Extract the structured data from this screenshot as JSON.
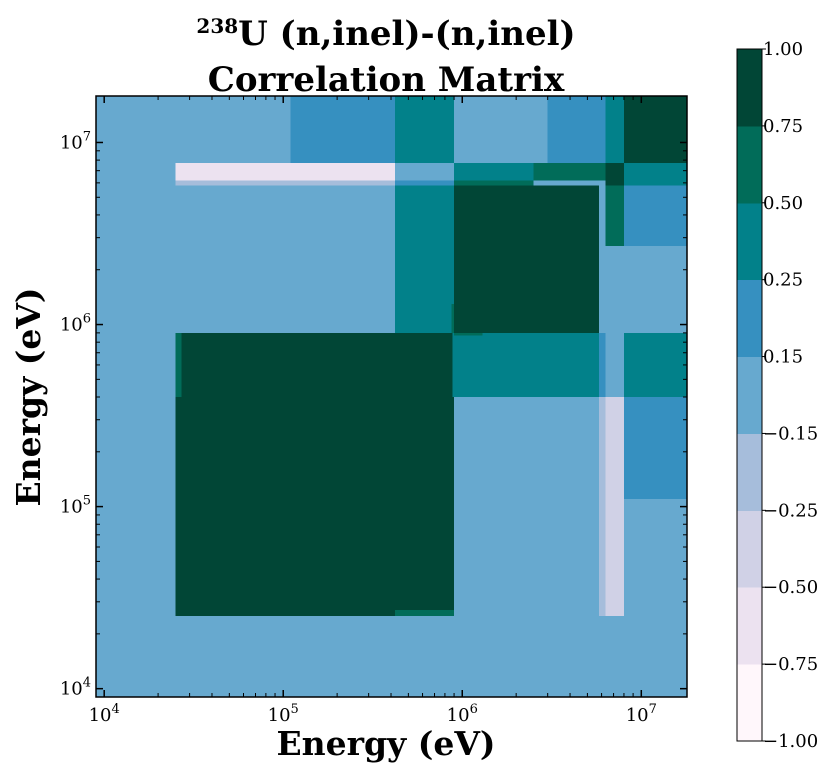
{
  "chart_data": {
    "type": "heatmap",
    "title_sup": "238",
    "title_line1": "U (n,inel)-(n,inel)",
    "title_line2": "Correlation Matrix",
    "xlabel": "Energy (eV)",
    "ylabel": "Energy (eV)",
    "xscale": "log",
    "yscale": "log",
    "xlim": [
      9000,
      18000000
    ],
    "ylim": [
      9000,
      18000000
    ],
    "x_ticks": [
      {
        "base": "10",
        "exp": "4",
        "value": 10000
      },
      {
        "base": "10",
        "exp": "5",
        "value": 100000
      },
      {
        "base": "10",
        "exp": "6",
        "value": 1000000
      },
      {
        "base": "10",
        "exp": "7",
        "value": 10000000
      }
    ],
    "y_ticks": [
      {
        "base": "10",
        "exp": "4",
        "value": 10000
      },
      {
        "base": "10",
        "exp": "5",
        "value": 100000
      },
      {
        "base": "10",
        "exp": "6",
        "value": 1000000
      },
      {
        "base": "10",
        "exp": "7",
        "value": 10000000
      }
    ],
    "colorbar": {
      "boundaries": [
        -1.0,
        -0.75,
        -0.5,
        -0.25,
        -0.15,
        0.15,
        0.25,
        0.5,
        0.75,
        1.0
      ],
      "tick_labels": [
        "−1.00",
        "−0.75",
        "−0.50",
        "−0.25",
        "−0.15",
        "0.15",
        "0.25",
        "0.50",
        "0.75",
        "1.00"
      ],
      "colors": [
        "#fff7fb",
        "#ece2f0",
        "#d0d1e6",
        "#a6bddb",
        "#67a9cf",
        "#3690c0",
        "#02818a",
        "#016c59",
        "#014636"
      ]
    },
    "cells": [
      {
        "x": [
          9000,
          18000000
        ],
        "y": [
          9000,
          18000000
        ],
        "v": 0.0
      },
      {
        "x": [
          25000,
          900000
        ],
        "y": [
          25000,
          900000
        ],
        "v": 0.9
      },
      {
        "x": [
          420000,
          900000
        ],
        "y": [
          25000,
          27000
        ],
        "v": 0.6
      },
      {
        "x": [
          25000,
          27000
        ],
        "y": [
          400000,
          900000
        ],
        "v": 0.6
      },
      {
        "x": [
          420000,
          900000
        ],
        "y": [
          900000,
          5800000
        ],
        "v": 0.35
      },
      {
        "x": [
          880000,
          5800000
        ],
        "y": [
          400000,
          900000
        ],
        "v": 0.35
      },
      {
        "x": [
          870000,
          900000
        ],
        "y": [
          900000,
          1300000
        ],
        "v": 0.6
      },
      {
        "x": [
          900000,
          1300000
        ],
        "y": [
          870000,
          900000
        ],
        "v": 0.6
      },
      {
        "x": [
          900000,
          6300000
        ],
        "y": [
          900000,
          5800000
        ],
        "v": 0.9
      },
      {
        "x": [
          5800000,
          6300000
        ],
        "y": [
          900000,
          5800000
        ],
        "v": 0.0
      },
      {
        "x": [
          6300000,
          8000000
        ],
        "y": [
          2700000,
          5800000
        ],
        "v": 0.6
      },
      {
        "x": [
          6300000,
          8000000
        ],
        "y": [
          900000,
          2700000
        ],
        "v": 0.0
      },
      {
        "x": [
          8000000,
          18000000
        ],
        "y": [
          2700000,
          5800000
        ],
        "v": 0.2
      },
      {
        "x": [
          8000000,
          18000000
        ],
        "y": [
          900000,
          2700000
        ],
        "v": 0.0
      },
      {
        "x": [
          6300000,
          8000000
        ],
        "y": [
          400000,
          900000
        ],
        "v": 0.0
      },
      {
        "x": [
          5800000,
          6300000
        ],
        "y": [
          400000,
          900000
        ],
        "v": 0.2
      },
      {
        "x": [
          8000000,
          18000000
        ],
        "y": [
          400000,
          900000
        ],
        "v": 0.35
      },
      {
        "x": [
          8000000,
          18000000
        ],
        "y": [
          110000,
          400000
        ],
        "v": 0.2
      },
      {
        "x": [
          5800000,
          8000000
        ],
        "y": [
          25000,
          400000
        ],
        "v": -0.3
      },
      {
        "x": [
          5800000,
          6300000
        ],
        "y": [
          25000,
          400000
        ],
        "v": -0.2
      },
      {
        "x": [
          25000,
          420000
        ],
        "y": [
          6200000,
          7700000
        ],
        "v": -0.6
      },
      {
        "x": [
          25000,
          420000
        ],
        "y": [
          5800000,
          6200000
        ],
        "v": -0.2
      },
      {
        "x": [
          420000,
          900000
        ],
        "y": [
          5800000,
          6200000
        ],
        "v": 0.2
      },
      {
        "x": [
          420000,
          900000
        ],
        "y": [
          6200000,
          7700000
        ],
        "v": 0.0
      },
      {
        "x": [
          110000,
          420000
        ],
        "y": [
          7700000,
          18000000
        ],
        "v": 0.2
      },
      {
        "x": [
          420000,
          900000
        ],
        "y": [
          7700000,
          18000000
        ],
        "v": 0.35
      },
      {
        "x": [
          900000,
          3000000
        ],
        "y": [
          7700000,
          18000000
        ],
        "v": 0.0
      },
      {
        "x": [
          3000000,
          6300000
        ],
        "y": [
          7700000,
          18000000
        ],
        "v": 0.2
      },
      {
        "x": [
          6300000,
          8000000
        ],
        "y": [
          7700000,
          18000000
        ],
        "v": 0.35
      },
      {
        "x": [
          8000000,
          18000000
        ],
        "y": [
          7700000,
          18000000
        ],
        "v": 0.9
      },
      {
        "x": [
          900000,
          2500000
        ],
        "y": [
          5800000,
          7700000
        ],
        "v": 0.35
      },
      {
        "x": [
          2500000,
          6300000
        ],
        "y": [
          6200000,
          7700000
        ],
        "v": 0.6
      },
      {
        "x": [
          900000,
          2500000
        ],
        "y": [
          5800000,
          6200000
        ],
        "v": 0.6
      },
      {
        "x": [
          6300000,
          8000000
        ],
        "y": [
          5800000,
          7700000
        ],
        "v": 0.9
      },
      {
        "x": [
          8000000,
          18000000
        ],
        "y": [
          5800000,
          7700000
        ],
        "v": 0.35
      }
    ]
  }
}
